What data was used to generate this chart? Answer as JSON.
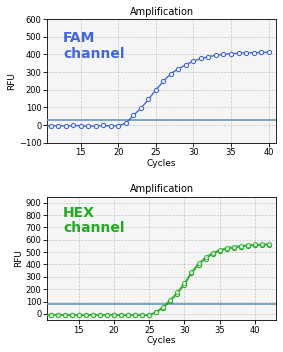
{
  "title": "Amplification",
  "fam_label": "FAM\nchannel",
  "hex_label": "HEX\nchannel",
  "xlabel": "Cycles",
  "ylabel": "RFU",
  "fam_color": "#4466dd",
  "hex_color": "#22aa22",
  "threshold_color": "#6699bb",
  "fam_ylim": [
    -100,
    600
  ],
  "fam_yticks": [
    -100,
    0,
    100,
    200,
    300,
    400,
    500,
    600
  ],
  "hex_ylim": [
    -50,
    950
  ],
  "hex_yticks": [
    0,
    100,
    200,
    300,
    400,
    500,
    600,
    700,
    800,
    900
  ],
  "fam_xlim": [
    10.5,
    41
  ],
  "hex_xlim": [
    10.5,
    43
  ],
  "xticks_fam": [
    15,
    20,
    25,
    30,
    35,
    40
  ],
  "xticks_hex": [
    15,
    20,
    25,
    30,
    35,
    40
  ],
  "fam_threshold": 30,
  "hex_threshold": 80,
  "background": "#f5f5f5",
  "grid_color": "#bbbbbb",
  "fam_curve": [
    -8,
    -5,
    -3,
    -6,
    -2,
    -4,
    -7,
    -5,
    -2,
    -5,
    -3,
    10,
    55,
    95,
    145,
    200,
    248,
    292,
    318,
    342,
    362,
    377,
    387,
    395,
    400,
    404,
    407,
    409,
    410,
    411,
    412
  ],
  "hex_curve": [
    -15,
    -10,
    -8,
    -10,
    -8,
    -12,
    -10,
    -8,
    -10,
    -8,
    -8,
    -10,
    -12,
    -10,
    -8,
    -10,
    12,
    50,
    105,
    165,
    238,
    328,
    398,
    448,
    485,
    512,
    527,
    537,
    545,
    551,
    555,
    558,
    560
  ],
  "hex_curve2": [
    -12,
    -8,
    -5,
    -8,
    -5,
    -10,
    -8,
    -5,
    -8,
    -5,
    -5,
    -8,
    -10,
    -8,
    -5,
    -8,
    18,
    60,
    115,
    178,
    250,
    340,
    410,
    460,
    495,
    520,
    535,
    545,
    553,
    558,
    562,
    565,
    567
  ],
  "fam_cycles": [
    10,
    11,
    12,
    13,
    14,
    15,
    16,
    17,
    18,
    19,
    20,
    21,
    22,
    23,
    24,
    25,
    26,
    27,
    28,
    29,
    30,
    31,
    32,
    33,
    34,
    35,
    36,
    37,
    38,
    39,
    40
  ],
  "hex_cycles": [
    10,
    11,
    12,
    13,
    14,
    15,
    16,
    17,
    18,
    19,
    20,
    21,
    22,
    23,
    24,
    25,
    26,
    27,
    28,
    29,
    30,
    31,
    32,
    33,
    34,
    35,
    36,
    37,
    38,
    39,
    40,
    41,
    42
  ]
}
